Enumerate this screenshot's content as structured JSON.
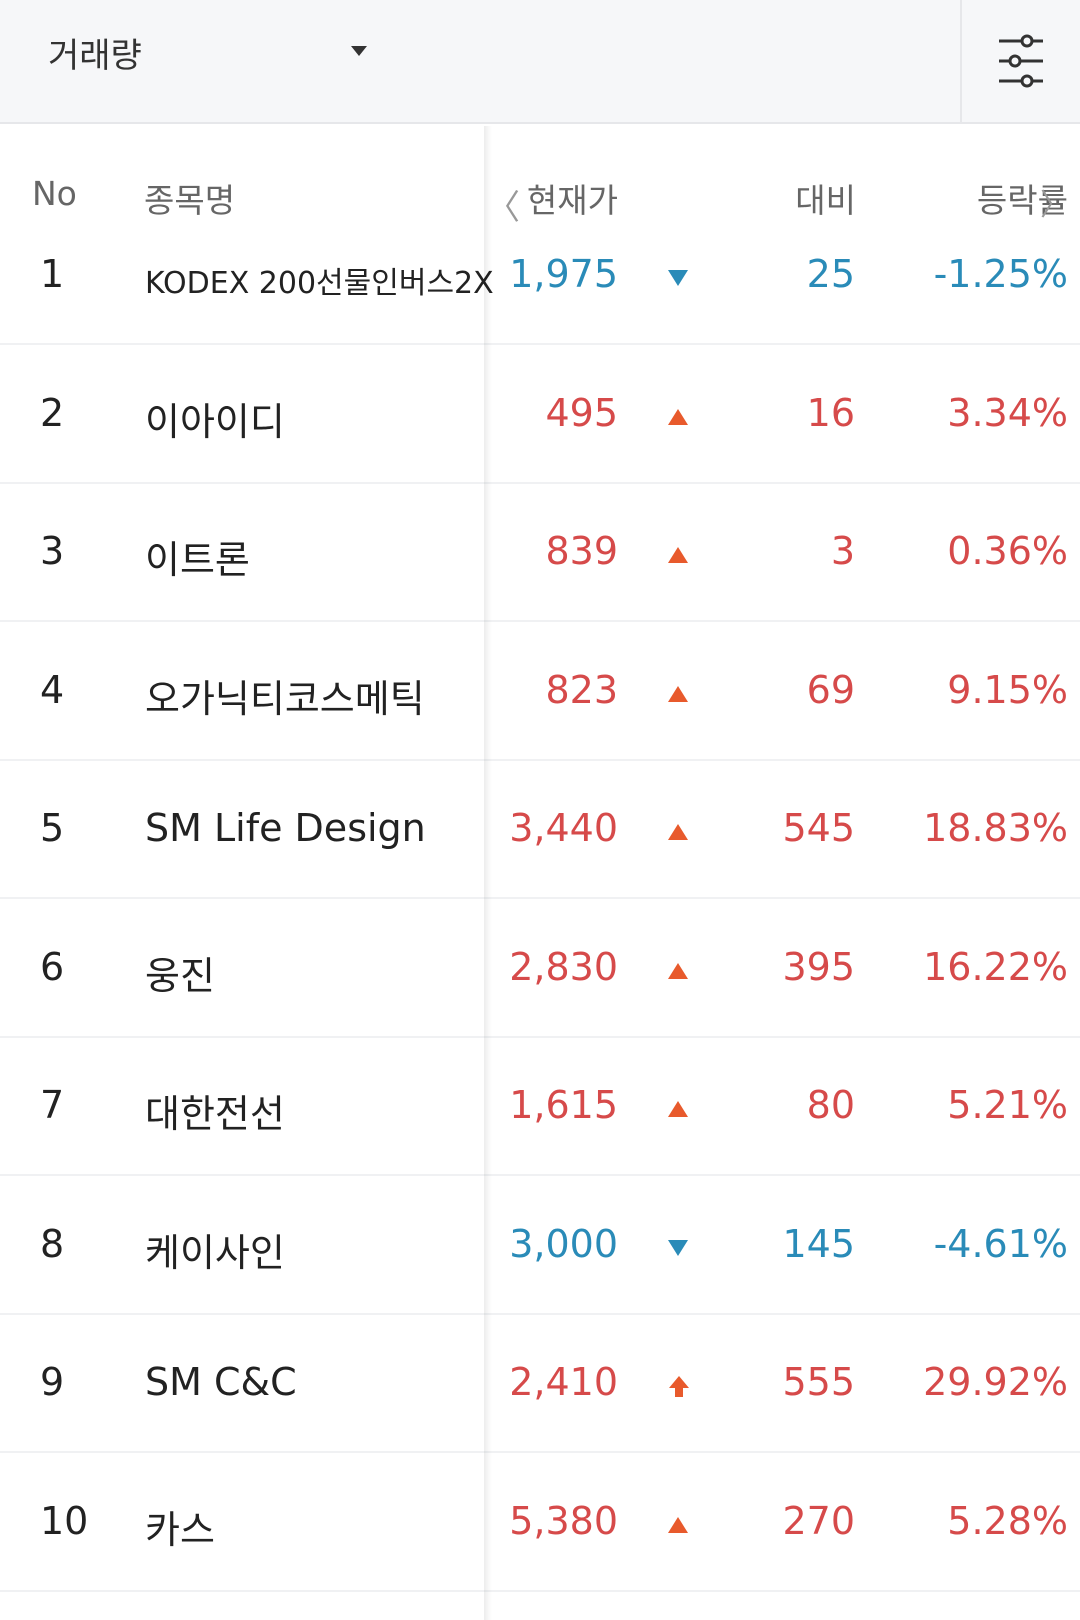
{
  "topbar": {
    "sort_label": "거래량",
    "caret_icon": "caret-down-icon",
    "filter_icon": "sliders-icon"
  },
  "header": {
    "no": "No",
    "name": "종목명",
    "price": "현재가",
    "change": "대비",
    "rate": "등락률",
    "left_icon": "〈",
    "right_icon": "〉"
  },
  "colors": {
    "up": "#d64a4a",
    "down": "#2a8bb8",
    "arrow_up": "#e85a2c"
  },
  "rows": [
    {
      "no": "1",
      "name": "KODEX 200선물인버스2X",
      "price": "1,975",
      "dir": "down",
      "change": "25",
      "rate": "-1.25%"
    },
    {
      "no": "2",
      "name": "이아이디",
      "price": "495",
      "dir": "up",
      "change": "16",
      "rate": "3.34%"
    },
    {
      "no": "3",
      "name": "이트론",
      "price": "839",
      "dir": "up",
      "change": "3",
      "rate": "0.36%"
    },
    {
      "no": "4",
      "name": "오가닉티코스메틱",
      "price": "823",
      "dir": "up",
      "change": "69",
      "rate": "9.15%"
    },
    {
      "no": "5",
      "name": "SM Life Design",
      "price": "3,440",
      "dir": "up",
      "change": "545",
      "rate": "18.83%"
    },
    {
      "no": "6",
      "name": "웅진",
      "price": "2,830",
      "dir": "up",
      "change": "395",
      "rate": "16.22%"
    },
    {
      "no": "7",
      "name": "대한전선",
      "price": "1,615",
      "dir": "up",
      "change": "80",
      "rate": "5.21%"
    },
    {
      "no": "8",
      "name": "케이사인",
      "price": "3,000",
      "dir": "down",
      "change": "145",
      "rate": "-4.61%"
    },
    {
      "no": "9",
      "name": "SM C&C",
      "price": "2,410",
      "dir": "limit-up",
      "change": "555",
      "rate": "29.92%"
    },
    {
      "no": "10",
      "name": "카스",
      "price": "5,380",
      "dir": "up",
      "change": "270",
      "rate": "5.28%"
    }
  ]
}
